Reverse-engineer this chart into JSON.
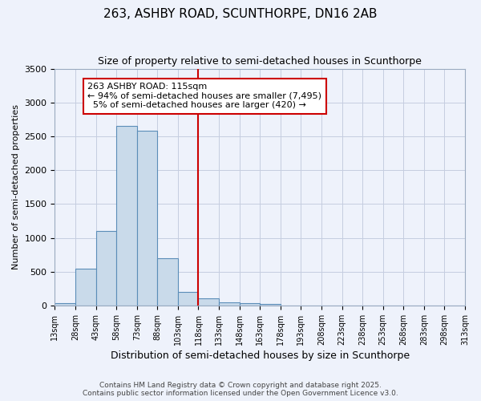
{
  "title": "263, ASHBY ROAD, SCUNTHORPE, DN16 2AB",
  "subtitle": "Size of property relative to semi-detached houses in Scunthorpe",
  "xlabel": "Distribution of semi-detached houses by size in Scunthorpe",
  "ylabel": "Number of semi-detached properties",
  "bins": [
    "13sqm",
    "28sqm",
    "43sqm",
    "58sqm",
    "73sqm",
    "88sqm",
    "103sqm",
    "118sqm",
    "133sqm",
    "148sqm",
    "163sqm",
    "178sqm",
    "193sqm",
    "208sqm",
    "223sqm",
    "238sqm",
    "253sqm",
    "268sqm",
    "283sqm",
    "298sqm",
    "313sqm"
  ],
  "values": [
    30,
    550,
    1100,
    2650,
    2580,
    700,
    200,
    110,
    50,
    30,
    20,
    0,
    0,
    0,
    0,
    0,
    0,
    0,
    0,
    0
  ],
  "vline_index": 7,
  "property_label": "263 ASHBY ROAD: 115sqm",
  "pct_smaller": 94,
  "n_smaller": 7495,
  "pct_larger": 5,
  "n_larger": 420,
  "bar_color": "#c9daea",
  "bar_edge_color": "#5b8db8",
  "vline_color": "#cc0000",
  "annotation_box_color": "#cc0000",
  "background_color": "#eef2fb",
  "grid_color": "#c5cde0",
  "ylim": [
    0,
    3500
  ],
  "yticks": [
    0,
    500,
    1000,
    1500,
    2000,
    2500,
    3000,
    3500
  ],
  "footer_line1": "Contains HM Land Registry data © Crown copyright and database right 2025.",
  "footer_line2": "Contains public sector information licensed under the Open Government Licence v3.0."
}
